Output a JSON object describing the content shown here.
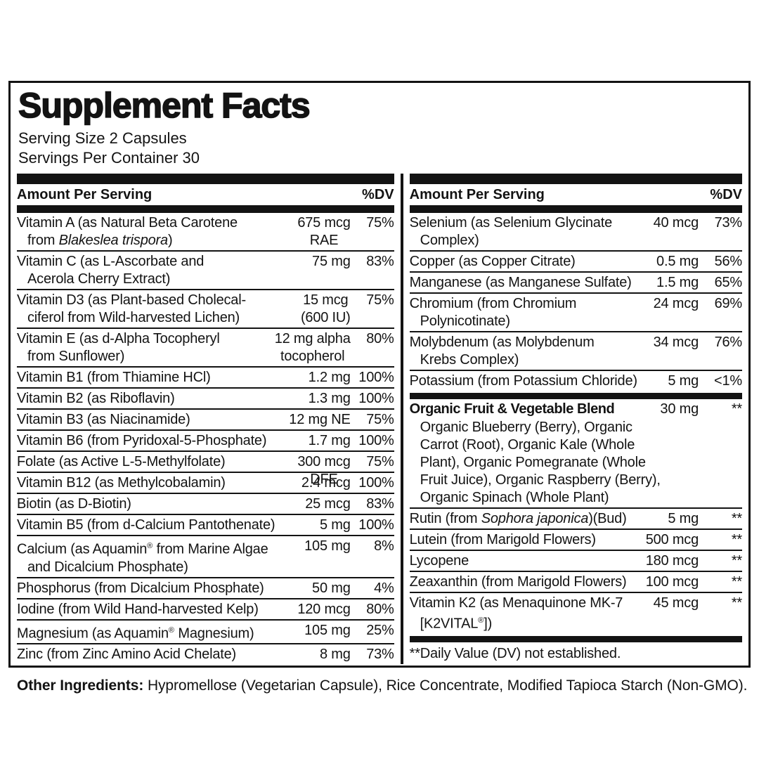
{
  "label": {
    "title": "Supplement Facts",
    "serving_size": "Serving Size 2 Capsules",
    "servings_per_container": "Servings Per Container 30"
  },
  "table": {
    "header": {
      "amount": "Amount Per Serving",
      "dv": "%DV"
    },
    "columns": [
      {
        "side": "left",
        "rows": [
          {
            "type": "nutrient",
            "name": "Vitamin A (as Natural Beta Carotene\nfrom *Blakeslea trispora*)",
            "amount": "675 mcg\nRAE",
            "dv": "75%"
          },
          {
            "type": "nutrient",
            "name": "Vitamin C (as L-Ascorbate and\nAcerola Cherry Extract)",
            "amount": "75 mg",
            "dv": "83%"
          },
          {
            "type": "nutrient",
            "name": "Vitamin D3 (as Plant-based Cholecal-\nciferol from Wild-harvested Lichen)",
            "amount": "15 mcg\n(600 IU)",
            "dv": "75%"
          },
          {
            "type": "nutrient",
            "name": "Vitamin E (as d-Alpha Tocopheryl\nfrom Sunflower)",
            "amount": "12 mg alpha\ntocopherol",
            "dv": "80%"
          },
          {
            "type": "nutrient",
            "name": "Vitamin B1 (from Thiamine HCl)",
            "amount": "1.2 mg",
            "dv": "100%"
          },
          {
            "type": "nutrient",
            "name": "Vitamin B2 (as Riboflavin)",
            "amount": "1.3 mg",
            "dv": "100%"
          },
          {
            "type": "nutrient",
            "name": "Vitamin B3 (as Niacinamide)",
            "amount": "12 mg NE",
            "dv": "75%"
          },
          {
            "type": "nutrient",
            "name": "Vitamin B6 (from Pyridoxal-5-Phosphate)",
            "amount": "1.7 mg",
            "dv": "100%"
          },
          {
            "type": "nutrient",
            "name": "Folate (as Active L-5-Methylfolate)",
            "amount": "300 mcg\nDFE",
            "dv": "75%"
          },
          {
            "type": "nutrient",
            "name": "Vitamin B12 (as Methylcobalamin)",
            "amount": "2.4 mcg",
            "dv": "100%"
          },
          {
            "type": "nutrient",
            "name": "Biotin (as D-Biotin)",
            "amount": "25 mcg",
            "dv": "83%"
          },
          {
            "type": "nutrient",
            "name": "Vitamin B5 (from d-Calcium Pantothenate)",
            "amount": "5 mg",
            "dv": "100%"
          },
          {
            "type": "nutrient",
            "name": "Calcium (as Aquamin® from Marine Algae\nand Dicalcium Phosphate)",
            "amount": "105 mg",
            "dv": "8%"
          },
          {
            "type": "nutrient",
            "name": "Phosphorus (from Dicalcium Phosphate)",
            "amount": "50 mg",
            "dv": "4%"
          },
          {
            "type": "nutrient",
            "name": "Iodine (from Wild Hand-harvested Kelp)",
            "amount": "120 mcg",
            "dv": "80%"
          },
          {
            "type": "nutrient",
            "name": "Magnesium (as Aquamin® Magnesium)",
            "amount": "105 mg",
            "dv": "25%"
          },
          {
            "type": "nutrient",
            "name": "Zinc (from Zinc Amino Acid Chelate)",
            "amount": "8 mg",
            "dv": "73%"
          }
        ]
      },
      {
        "side": "right",
        "rows": [
          {
            "type": "nutrient",
            "name": "Selenium (as Selenium Glycinate\nComplex)",
            "amount": "40 mcg",
            "dv": "73%"
          },
          {
            "type": "nutrient",
            "name": "Copper (as Copper Citrate)",
            "amount": "0.5 mg",
            "dv": "56%"
          },
          {
            "type": "nutrient",
            "name": "Manganese (as Manganese Sulfate)",
            "amount": "1.5 mg",
            "dv": "65%"
          },
          {
            "type": "nutrient",
            "name": "Chromium (from Chromium\nPolynicotinate)",
            "amount": "24 mcg",
            "dv": "69%"
          },
          {
            "type": "nutrient",
            "name": "Molybdenum (as Molybdenum\nKrebs Complex)",
            "amount": "34 mcg",
            "dv": "76%"
          },
          {
            "type": "nutrient",
            "name": "Potassium (from Potassium Chloride)",
            "amount": "5 mg",
            "dv": "<1%"
          },
          {
            "type": "bar"
          },
          {
            "type": "blend",
            "name": "Organic Fruit & Vegetable Blend",
            "amount": "30 mg",
            "dv": "**",
            "details": "Organic Blueberry (Berry), Organic\nCarrot (Root), Organic Kale (Whole\nPlant), Organic Pomegranate (Whole\nFruit Juice), Organic Raspberry (Berry),\nOrganic Spinach (Whole Plant)"
          },
          {
            "type": "nutrient",
            "name": "Rutin (from *Sophora japonica*)(Bud)",
            "amount": "5 mg",
            "dv": "**"
          },
          {
            "type": "nutrient",
            "name": "Lutein (from Marigold Flowers)",
            "amount": "500 mcg",
            "dv": "**"
          },
          {
            "type": "nutrient",
            "name": "Lycopene",
            "amount": "180 mcg",
            "dv": "**"
          },
          {
            "type": "nutrient",
            "name": "Zeaxanthin (from Marigold Flowers)",
            "amount": "100 mcg",
            "dv": "**"
          },
          {
            "type": "nutrient",
            "name": "Vitamin K2 (as Menaquinone MK-7\n[K2VITAL®])",
            "amount": "45 mcg",
            "dv": "**"
          },
          {
            "type": "bar"
          },
          {
            "type": "footnote",
            "text": "**Daily Value (DV) not established."
          }
        ]
      }
    ]
  },
  "other_ingredients": {
    "label": "Other Ingredients:",
    "text": " Hypromellose (Vegetarian Capsule), Rice Concentrate, Modified Tapioca Starch (Non-GMO)."
  },
  "colors": {
    "ink": "#131313",
    "background": "#ffffff"
  }
}
